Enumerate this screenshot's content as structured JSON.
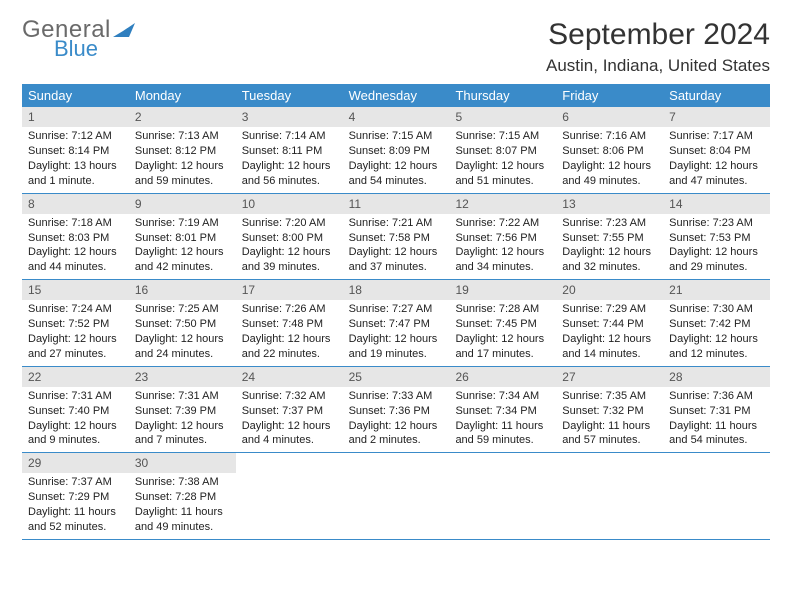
{
  "logo": {
    "text_general": "General",
    "text_blue": "Blue",
    "accent_color": "#2f7fbf",
    "gray": "#6a6a6a"
  },
  "title": "September 2024",
  "location": "Austin, Indiana, United States",
  "header_bg": "#3a8bc9",
  "daynum_bg": "#e6e6e6",
  "days_of_week": [
    "Sunday",
    "Monday",
    "Tuesday",
    "Wednesday",
    "Thursday",
    "Friday",
    "Saturday"
  ],
  "weeks": [
    [
      {
        "n": "1",
        "sunrise": "Sunrise: 7:12 AM",
        "sunset": "Sunset: 8:14 PM",
        "daylight": "Daylight: 13 hours and 1 minute."
      },
      {
        "n": "2",
        "sunrise": "Sunrise: 7:13 AM",
        "sunset": "Sunset: 8:12 PM",
        "daylight": "Daylight: 12 hours and 59 minutes."
      },
      {
        "n": "3",
        "sunrise": "Sunrise: 7:14 AM",
        "sunset": "Sunset: 8:11 PM",
        "daylight": "Daylight: 12 hours and 56 minutes."
      },
      {
        "n": "4",
        "sunrise": "Sunrise: 7:15 AM",
        "sunset": "Sunset: 8:09 PM",
        "daylight": "Daylight: 12 hours and 54 minutes."
      },
      {
        "n": "5",
        "sunrise": "Sunrise: 7:15 AM",
        "sunset": "Sunset: 8:07 PM",
        "daylight": "Daylight: 12 hours and 51 minutes."
      },
      {
        "n": "6",
        "sunrise": "Sunrise: 7:16 AM",
        "sunset": "Sunset: 8:06 PM",
        "daylight": "Daylight: 12 hours and 49 minutes."
      },
      {
        "n": "7",
        "sunrise": "Sunrise: 7:17 AM",
        "sunset": "Sunset: 8:04 PM",
        "daylight": "Daylight: 12 hours and 47 minutes."
      }
    ],
    [
      {
        "n": "8",
        "sunrise": "Sunrise: 7:18 AM",
        "sunset": "Sunset: 8:03 PM",
        "daylight": "Daylight: 12 hours and 44 minutes."
      },
      {
        "n": "9",
        "sunrise": "Sunrise: 7:19 AM",
        "sunset": "Sunset: 8:01 PM",
        "daylight": "Daylight: 12 hours and 42 minutes."
      },
      {
        "n": "10",
        "sunrise": "Sunrise: 7:20 AM",
        "sunset": "Sunset: 8:00 PM",
        "daylight": "Daylight: 12 hours and 39 minutes."
      },
      {
        "n": "11",
        "sunrise": "Sunrise: 7:21 AM",
        "sunset": "Sunset: 7:58 PM",
        "daylight": "Daylight: 12 hours and 37 minutes."
      },
      {
        "n": "12",
        "sunrise": "Sunrise: 7:22 AM",
        "sunset": "Sunset: 7:56 PM",
        "daylight": "Daylight: 12 hours and 34 minutes."
      },
      {
        "n": "13",
        "sunrise": "Sunrise: 7:23 AM",
        "sunset": "Sunset: 7:55 PM",
        "daylight": "Daylight: 12 hours and 32 minutes."
      },
      {
        "n": "14",
        "sunrise": "Sunrise: 7:23 AM",
        "sunset": "Sunset: 7:53 PM",
        "daylight": "Daylight: 12 hours and 29 minutes."
      }
    ],
    [
      {
        "n": "15",
        "sunrise": "Sunrise: 7:24 AM",
        "sunset": "Sunset: 7:52 PM",
        "daylight": "Daylight: 12 hours and 27 minutes."
      },
      {
        "n": "16",
        "sunrise": "Sunrise: 7:25 AM",
        "sunset": "Sunset: 7:50 PM",
        "daylight": "Daylight: 12 hours and 24 minutes."
      },
      {
        "n": "17",
        "sunrise": "Sunrise: 7:26 AM",
        "sunset": "Sunset: 7:48 PM",
        "daylight": "Daylight: 12 hours and 22 minutes."
      },
      {
        "n": "18",
        "sunrise": "Sunrise: 7:27 AM",
        "sunset": "Sunset: 7:47 PM",
        "daylight": "Daylight: 12 hours and 19 minutes."
      },
      {
        "n": "19",
        "sunrise": "Sunrise: 7:28 AM",
        "sunset": "Sunset: 7:45 PM",
        "daylight": "Daylight: 12 hours and 17 minutes."
      },
      {
        "n": "20",
        "sunrise": "Sunrise: 7:29 AM",
        "sunset": "Sunset: 7:44 PM",
        "daylight": "Daylight: 12 hours and 14 minutes."
      },
      {
        "n": "21",
        "sunrise": "Sunrise: 7:30 AM",
        "sunset": "Sunset: 7:42 PM",
        "daylight": "Daylight: 12 hours and 12 minutes."
      }
    ],
    [
      {
        "n": "22",
        "sunrise": "Sunrise: 7:31 AM",
        "sunset": "Sunset: 7:40 PM",
        "daylight": "Daylight: 12 hours and 9 minutes."
      },
      {
        "n": "23",
        "sunrise": "Sunrise: 7:31 AM",
        "sunset": "Sunset: 7:39 PM",
        "daylight": "Daylight: 12 hours and 7 minutes."
      },
      {
        "n": "24",
        "sunrise": "Sunrise: 7:32 AM",
        "sunset": "Sunset: 7:37 PM",
        "daylight": "Daylight: 12 hours and 4 minutes."
      },
      {
        "n": "25",
        "sunrise": "Sunrise: 7:33 AM",
        "sunset": "Sunset: 7:36 PM",
        "daylight": "Daylight: 12 hours and 2 minutes."
      },
      {
        "n": "26",
        "sunrise": "Sunrise: 7:34 AM",
        "sunset": "Sunset: 7:34 PM",
        "daylight": "Daylight: 11 hours and 59 minutes."
      },
      {
        "n": "27",
        "sunrise": "Sunrise: 7:35 AM",
        "sunset": "Sunset: 7:32 PM",
        "daylight": "Daylight: 11 hours and 57 minutes."
      },
      {
        "n": "28",
        "sunrise": "Sunrise: 7:36 AM",
        "sunset": "Sunset: 7:31 PM",
        "daylight": "Daylight: 11 hours and 54 minutes."
      }
    ],
    [
      {
        "n": "29",
        "sunrise": "Sunrise: 7:37 AM",
        "sunset": "Sunset: 7:29 PM",
        "daylight": "Daylight: 11 hours and 52 minutes."
      },
      {
        "n": "30",
        "sunrise": "Sunrise: 7:38 AM",
        "sunset": "Sunset: 7:28 PM",
        "daylight": "Daylight: 11 hours and 49 minutes."
      },
      null,
      null,
      null,
      null,
      null
    ]
  ]
}
